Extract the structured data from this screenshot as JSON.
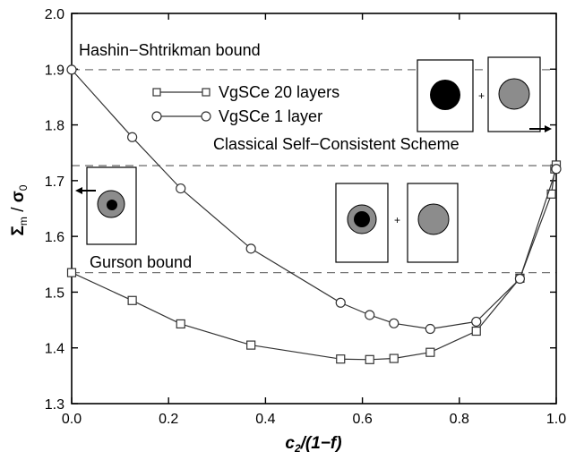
{
  "chart_data": {
    "type": "line",
    "xlabel_parts": {
      "c": "c",
      "sub": "2",
      "rest": "/(1−f)"
    },
    "ylabel_parts": {
      "sigma": "Σ",
      "sub_m": "m",
      "slash": " / ",
      "s0": "σ",
      "sub_0": "0"
    },
    "xlim": [
      0.0,
      1.0
    ],
    "ylim": [
      1.3,
      2.0
    ],
    "xticks": [
      "0.0",
      "0.2",
      "0.4",
      "0.6",
      "0.8",
      "1.0"
    ],
    "yticks": [
      "1.3",
      "1.4",
      "1.5",
      "1.6",
      "1.7",
      "1.8",
      "1.9",
      "2.0"
    ],
    "grid": false,
    "legend_position": "upper-middle",
    "series": [
      {
        "name": "VgSCe 20 layers",
        "marker": "square",
        "x": [
          0.0,
          0.125,
          0.225,
          0.37,
          0.555,
          0.615,
          0.665,
          0.74,
          0.835,
          0.925,
          0.99,
          0.997,
          1.0
        ],
        "y": [
          1.535,
          1.485,
          1.443,
          1.405,
          1.38,
          1.379,
          1.381,
          1.392,
          1.43,
          1.525,
          1.676,
          1.721,
          1.728
        ]
      },
      {
        "name": "VgSCe 1 layer",
        "marker": "circle",
        "x": [
          0.0,
          0.125,
          0.225,
          0.37,
          0.555,
          0.615,
          0.665,
          0.74,
          0.835,
          0.925,
          1.0
        ],
        "y": [
          1.899,
          1.778,
          1.686,
          1.578,
          1.481,
          1.459,
          1.444,
          1.434,
          1.447,
          1.524,
          1.721
        ]
      }
    ],
    "reference_lines": [
      {
        "label": "Hashin−Shtrikman bound",
        "y": 1.899
      },
      {
        "label": "Classical Self−Consistent Scheme",
        "y": 1.727
      },
      {
        "label": "Gurson bound",
        "y": 1.535
      }
    ],
    "insets": {
      "plus_sign": "+"
    },
    "colors": {
      "line": "#333333",
      "dash": "#777777",
      "gray_fill": "#8c8c8c",
      "black_fill": "#000000"
    }
  }
}
